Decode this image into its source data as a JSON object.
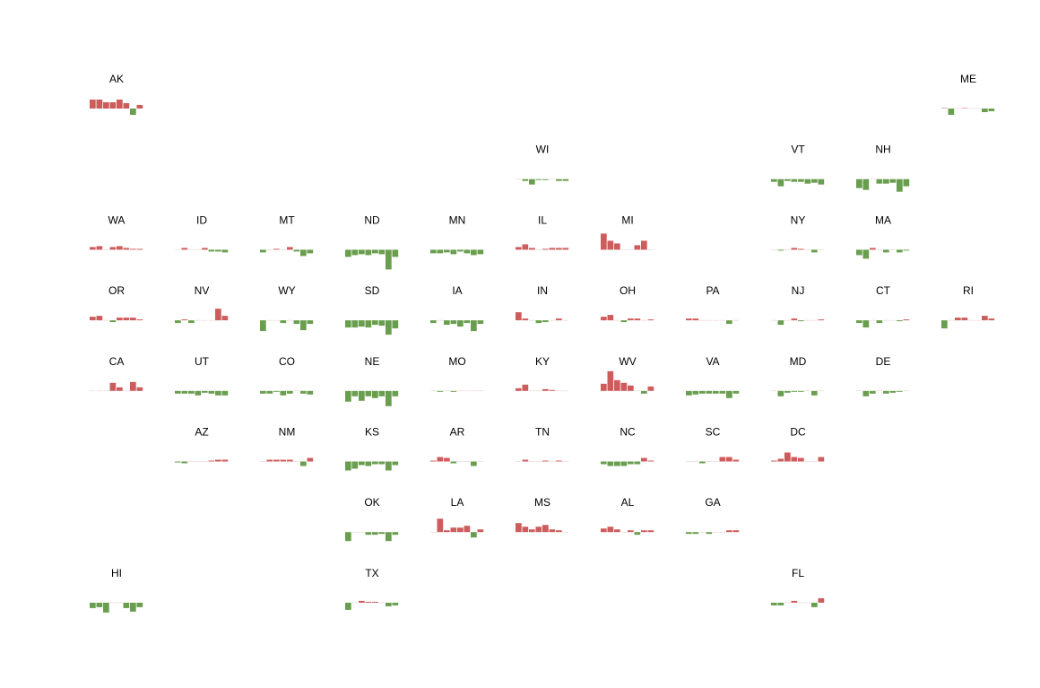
{
  "chart_data": {
    "type": "bar",
    "layout": "US state tile grid map of small-multiple bar charts",
    "grid": false,
    "colors": {
      "positive": "#cd5c5c",
      "negative": "#6a9e4f"
    },
    "bars_per_panel": 8,
    "states": [
      {
        "abbr": "AK",
        "col": 0,
        "row": 0,
        "values": [
          1.0,
          1.0,
          0.7,
          0.7,
          1.0,
          0.6,
          -0.7,
          0.4
        ]
      },
      {
        "abbr": "ME",
        "col": 10,
        "row": 0,
        "values": [
          0.05,
          -0.7,
          0.0,
          0.05,
          0.0,
          0.0,
          -0.4,
          -0.3
        ]
      },
      {
        "abbr": "WI",
        "col": 5,
        "row": 1,
        "values": [
          0.0,
          -0.2,
          -0.6,
          -0.1,
          -0.1,
          0.0,
          -0.2,
          -0.2
        ]
      },
      {
        "abbr": "VT",
        "col": 8,
        "row": 1,
        "values": [
          -0.3,
          -0.8,
          -0.2,
          -0.3,
          -0.3,
          -0.5,
          -0.4,
          -0.6
        ]
      },
      {
        "abbr": "NH",
        "col": 9,
        "row": 1,
        "values": [
          -1.0,
          -1.2,
          0.0,
          -0.5,
          -0.5,
          -0.4,
          -1.4,
          -0.8
        ]
      },
      {
        "abbr": "WA",
        "col": 0,
        "row": 2,
        "values": [
          0.3,
          0.4,
          0.0,
          0.3,
          0.4,
          0.2,
          0.1,
          0.1
        ]
      },
      {
        "abbr": "ID",
        "col": 1,
        "row": 2,
        "values": [
          0.0,
          0.2,
          0.0,
          0.0,
          0.2,
          -0.2,
          -0.2,
          -0.3
        ]
      },
      {
        "abbr": "MT",
        "col": 2,
        "row": 2,
        "values": [
          -0.3,
          0.0,
          0.1,
          0.0,
          0.3,
          -0.2,
          -0.7,
          -0.4
        ]
      },
      {
        "abbr": "ND",
        "col": 3,
        "row": 2,
        "values": [
          -0.8,
          -0.6,
          -0.5,
          -0.6,
          -0.4,
          -0.5,
          -2.2,
          -0.8
        ]
      },
      {
        "abbr": "MN",
        "col": 4,
        "row": 2,
        "values": [
          -0.4,
          -0.4,
          -0.3,
          -0.5,
          -0.2,
          -0.4,
          -0.6,
          -0.5
        ]
      },
      {
        "abbr": "IL",
        "col": 5,
        "row": 2,
        "values": [
          0.3,
          0.6,
          0.2,
          0.0,
          0.1,
          0.2,
          0.2,
          0.2
        ]
      },
      {
        "abbr": "MI",
        "col": 6,
        "row": 2,
        "values": [
          1.8,
          1.0,
          0.7,
          0.0,
          0.0,
          0.5,
          1.0,
          0.0
        ]
      },
      {
        "abbr": "NY",
        "col": 8,
        "row": 2,
        "values": [
          0.0,
          -0.1,
          0.0,
          0.2,
          0.1,
          0.0,
          -0.3,
          0.0
        ]
      },
      {
        "abbr": "MA",
        "col": 9,
        "row": 2,
        "values": [
          -0.6,
          -1.0,
          0.2,
          0.0,
          -0.3,
          0.0,
          -0.3,
          -0.1
        ]
      },
      {
        "abbr": "OR",
        "col": 0,
        "row": 3,
        "values": [
          0.4,
          0.5,
          0.0,
          -0.2,
          0.3,
          0.3,
          0.3,
          0.1
        ]
      },
      {
        "abbr": "NV",
        "col": 1,
        "row": 3,
        "values": [
          -0.3,
          0.1,
          -0.3,
          0.0,
          0.0,
          0.0,
          1.3,
          0.5
        ]
      },
      {
        "abbr": "WY",
        "col": 2,
        "row": 3,
        "values": [
          -1.2,
          0.0,
          0.0,
          -0.3,
          0.0,
          -0.4,
          -1.1,
          -0.4
        ]
      },
      {
        "abbr": "SD",
        "col": 3,
        "row": 3,
        "values": [
          -0.8,
          -0.8,
          -0.7,
          -0.8,
          -0.5,
          -0.6,
          -1.6,
          -0.9
        ]
      },
      {
        "abbr": "IA",
        "col": 4,
        "row": 3,
        "values": [
          -0.3,
          0.0,
          -0.5,
          -0.4,
          -0.7,
          -0.3,
          -1.2,
          -0.4
        ]
      },
      {
        "abbr": "IN",
        "col": 5,
        "row": 3,
        "values": [
          0.9,
          0.2,
          0.0,
          -0.3,
          -0.2,
          0.0,
          0.2,
          0.0
        ]
      },
      {
        "abbr": "OH",
        "col": 6,
        "row": 3,
        "values": [
          0.4,
          0.6,
          0.0,
          -0.2,
          0.2,
          0.2,
          0.0,
          0.1
        ]
      },
      {
        "abbr": "PA",
        "col": 7,
        "row": 3,
        "values": [
          0.2,
          0.2,
          0.0,
          0.0,
          0.0,
          0.0,
          -0.4,
          0.0
        ]
      },
      {
        "abbr": "NJ",
        "col": 8,
        "row": 3,
        "values": [
          0.0,
          -0.5,
          0.0,
          0.2,
          -0.1,
          0.0,
          0.0,
          0.1
        ]
      },
      {
        "abbr": "CT",
        "col": 9,
        "row": 3,
        "values": [
          -0.3,
          -0.8,
          0.0,
          -0.3,
          0.0,
          0.0,
          -0.1,
          0.1
        ]
      },
      {
        "abbr": "RI",
        "col": 10,
        "row": 3,
        "values": [
          -0.9,
          0.0,
          0.3,
          0.3,
          0.0,
          0.0,
          0.5,
          0.2
        ]
      },
      {
        "abbr": "CA",
        "col": 0,
        "row": 4,
        "values": [
          0.0,
          0.0,
          0.0,
          0.9,
          0.4,
          0.0,
          1.0,
          0.4
        ]
      },
      {
        "abbr": "UT",
        "col": 1,
        "row": 4,
        "values": [
          -0.3,
          -0.3,
          -0.3,
          -0.5,
          -0.2,
          -0.3,
          -0.5,
          -0.5
        ]
      },
      {
        "abbr": "CO",
        "col": 2,
        "row": 4,
        "values": [
          -0.3,
          -0.3,
          -0.1,
          -0.5,
          -0.3,
          0.0,
          -0.3,
          -0.4
        ]
      },
      {
        "abbr": "NE",
        "col": 3,
        "row": 4,
        "values": [
          -1.2,
          -0.6,
          -1.1,
          -0.6,
          -0.8,
          -0.6,
          -1.7,
          -0.6
        ]
      },
      {
        "abbr": "MO",
        "col": 4,
        "row": 4,
        "values": [
          0.0,
          -0.1,
          0.0,
          -0.1,
          0.0,
          0.0,
          0.0,
          0.0
        ]
      },
      {
        "abbr": "KY",
        "col": 5,
        "row": 4,
        "values": [
          0.3,
          0.7,
          0.0,
          0.0,
          0.2,
          0.1,
          0.0,
          0.0
        ]
      },
      {
        "abbr": "WV",
        "col": 6,
        "row": 4,
        "values": [
          0.8,
          2.2,
          1.2,
          0.9,
          0.6,
          0.0,
          -0.3,
          0.5
        ]
      },
      {
        "abbr": "VA",
        "col": 7,
        "row": 4,
        "values": [
          -0.5,
          -0.4,
          -0.3,
          -0.3,
          -0.3,
          -0.3,
          -0.8,
          -0.3
        ]
      },
      {
        "abbr": "MD",
        "col": 8,
        "row": 4,
        "values": [
          0.0,
          -0.6,
          -0.2,
          -0.1,
          -0.1,
          0.0,
          -0.5,
          0.0
        ]
      },
      {
        "abbr": "DE",
        "col": 9,
        "row": 4,
        "values": [
          0.0,
          -0.6,
          -0.3,
          0.0,
          -0.3,
          -0.2,
          -0.1,
          0.0
        ]
      },
      {
        "abbr": "AZ",
        "col": 1,
        "row": 5,
        "values": [
          -0.1,
          -0.2,
          0.0,
          0.0,
          0.0,
          0.1,
          0.2,
          0.2
        ]
      },
      {
        "abbr": "NM",
        "col": 2,
        "row": 5,
        "values": [
          0.0,
          0.2,
          0.2,
          0.2,
          0.2,
          0.0,
          -0.5,
          0.4
        ]
      },
      {
        "abbr": "KS",
        "col": 3,
        "row": 5,
        "values": [
          -1.0,
          -0.8,
          -0.4,
          -0.5,
          -0.3,
          -0.3,
          -1.0,
          -0.4
        ]
      },
      {
        "abbr": "AR",
        "col": 4,
        "row": 5,
        "values": [
          0.1,
          0.5,
          0.4,
          -0.2,
          0.0,
          0.0,
          -0.5,
          0.0
        ]
      },
      {
        "abbr": "TN",
        "col": 5,
        "row": 5,
        "values": [
          0.0,
          0.2,
          0.0,
          0.0,
          0.1,
          0.0,
          0.1,
          0.0
        ]
      },
      {
        "abbr": "NC",
        "col": 6,
        "row": 5,
        "values": [
          -0.3,
          -0.5,
          -0.5,
          -0.5,
          -0.3,
          -0.3,
          0.4,
          0.1
        ]
      },
      {
        "abbr": "SC",
        "col": 7,
        "row": 5,
        "values": [
          0.0,
          0.0,
          -0.2,
          0.0,
          0.0,
          0.5,
          0.5,
          0.2
        ]
      },
      {
        "abbr": "DC",
        "col": 8,
        "row": 5,
        "values": [
          0.1,
          0.3,
          1.0,
          0.5,
          0.4,
          0.0,
          0.0,
          0.5
        ]
      },
      {
        "abbr": "OK",
        "col": 3,
        "row": 6,
        "values": [
          -1.0,
          0.0,
          0.0,
          -0.3,
          -0.3,
          -0.2,
          -1.0,
          -0.3
        ]
      },
      {
        "abbr": "LA",
        "col": 4,
        "row": 6,
        "values": [
          0.0,
          1.5,
          0.2,
          0.5,
          0.5,
          0.7,
          -0.6,
          0.3
        ]
      },
      {
        "abbr": "MS",
        "col": 5,
        "row": 6,
        "values": [
          1.0,
          0.6,
          0.3,
          0.6,
          0.8,
          0.3,
          0.2,
          0.0
        ]
      },
      {
        "abbr": "AL",
        "col": 6,
        "row": 6,
        "values": [
          0.4,
          0.6,
          0.3,
          0.0,
          0.2,
          -0.3,
          0.2,
          0.2
        ]
      },
      {
        "abbr": "GA",
        "col": 7,
        "row": 6,
        "values": [
          -0.2,
          -0.2,
          0.0,
          -0.2,
          0.0,
          0.0,
          0.2,
          0.2
        ]
      },
      {
        "abbr": "HI",
        "col": 0,
        "row": 7,
        "values": [
          -0.6,
          -0.5,
          -1.1,
          0.0,
          0.0,
          -0.6,
          -1.0,
          -0.5
        ]
      },
      {
        "abbr": "TX",
        "col": 3,
        "row": 7,
        "values": [
          -0.8,
          0.0,
          0.2,
          0.1,
          0.1,
          0.0,
          -0.4,
          -0.3
        ]
      },
      {
        "abbr": "FL",
        "col": 8,
        "row": 7,
        "values": [
          -0.3,
          -0.3,
          0.0,
          0.2,
          0.0,
          0.0,
          -0.5,
          0.5
        ]
      }
    ]
  }
}
